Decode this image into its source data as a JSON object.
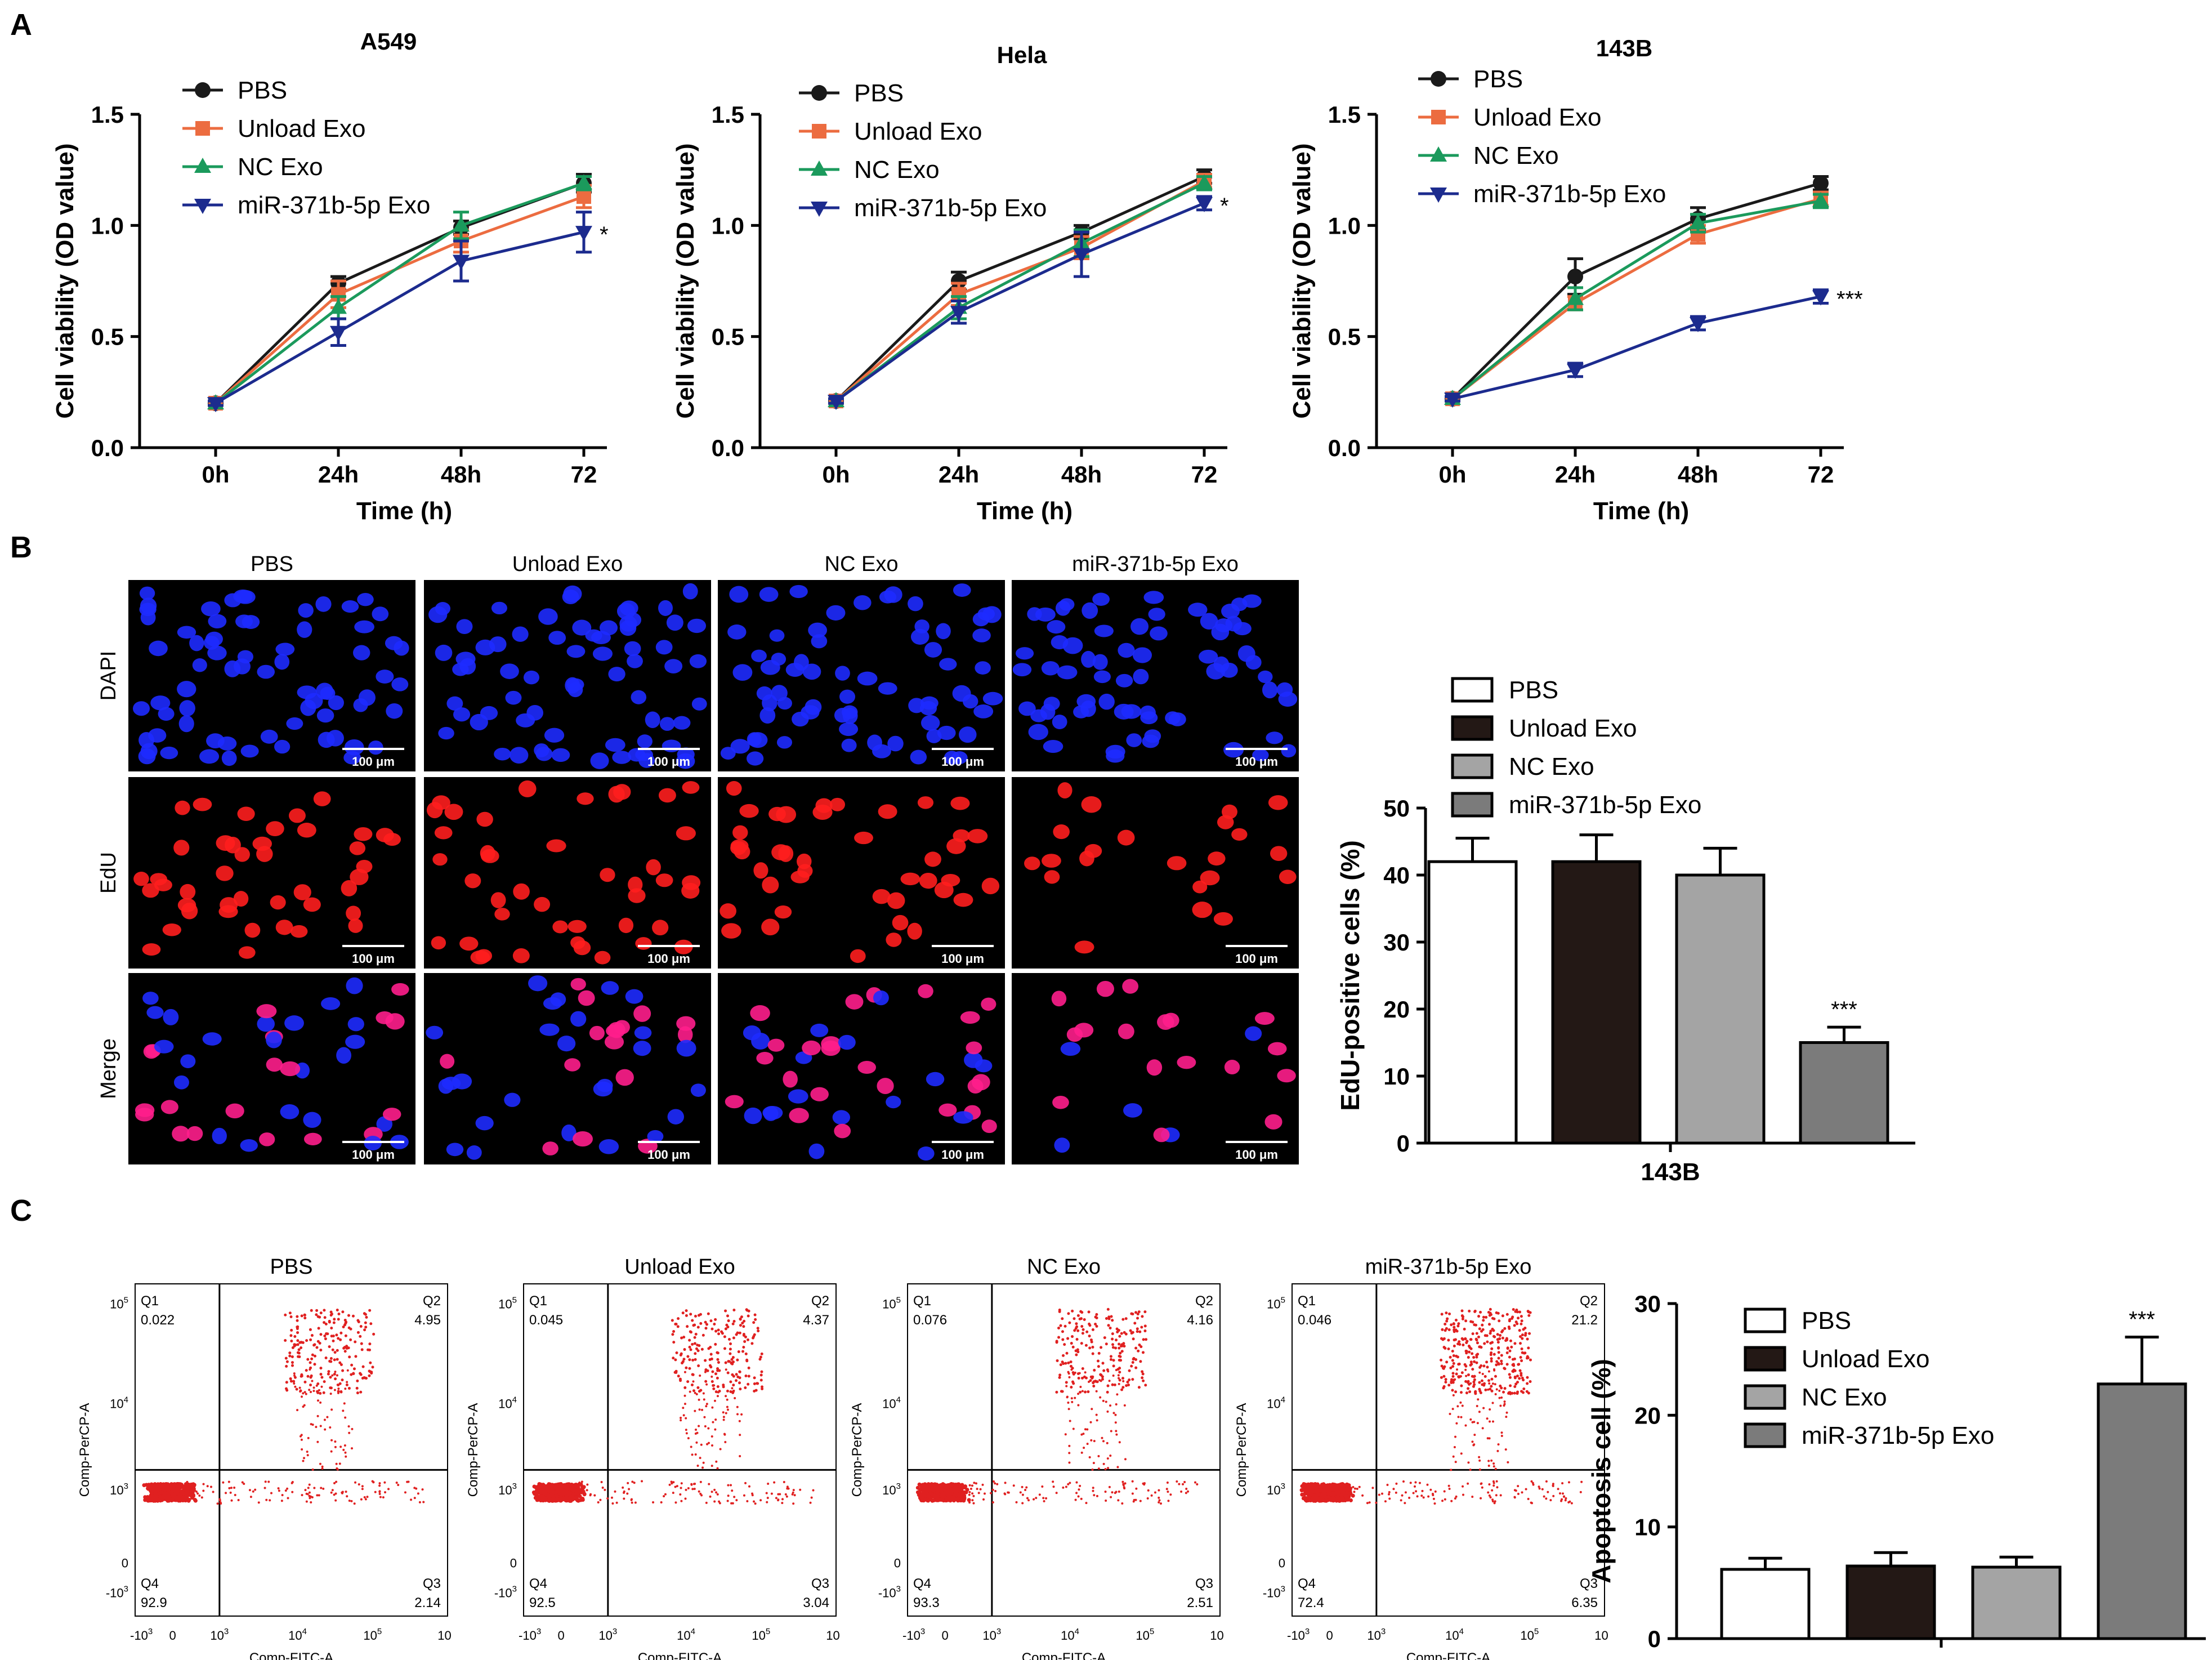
{
  "panels": {
    "a": "A",
    "b": "B",
    "c": "C"
  },
  "legend_labels": [
    "PBS",
    "Unload Exo",
    "NC Exo",
    "miR-371b-5p Exo"
  ],
  "colors": {
    "line_series": [
      "#1a1a1a",
      "#ec6c40",
      "#1b9a5c",
      "#1c2b8e"
    ],
    "bar_fills": [
      "#ffffff",
      "#231815",
      "#a4a4a4",
      "#7b7b7b"
    ],
    "dapi": "#1e2bff",
    "edu": "#ff1e1e",
    "merge": "#ff1e8c",
    "flow_dots": "#e02020"
  },
  "microscopy": {
    "columns": [
      "PBS",
      "Unload Exo",
      "NC Exo",
      "miR-371b-5p Exo"
    ],
    "rows": [
      "DAPI",
      "EdU",
      "Merge"
    ],
    "scale_bar": "100 μm"
  },
  "flow": {
    "plots": [
      {
        "title": "PBS",
        "q1": "0.022",
        "q2": "4.95",
        "q3": "2.14",
        "q4": "92.9"
      },
      {
        "title": "Unload Exo",
        "q1": "0.045",
        "q2": "4.37",
        "q3": "3.04",
        "q4": "92.5"
      },
      {
        "title": "NC Exo",
        "q1": "0.076",
        "q2": "4.16",
        "q3": "2.51",
        "q4": "93.3"
      },
      {
        "title": "miR-371b-5p Exo",
        "q1": "0.046",
        "q2": "21.2",
        "q3": "6.35",
        "q4": "72.4"
      }
    ],
    "quadrant_names": [
      "Q1",
      "Q2",
      "Q3",
      "Q4"
    ],
    "xlabel": "Comp-FITC-A",
    "ylabel": "Comp-PerCP-A",
    "xticks": [
      "-10",
      "0",
      "10",
      "10",
      "10",
      "10"
    ],
    "xtick_exps": [
      "3",
      "",
      "3",
      "4",
      "5",
      ""
    ],
    "yticks": [
      "-10",
      "0",
      "10",
      "10",
      "10"
    ],
    "ytick_exps": [
      "3",
      "",
      "3",
      "4",
      "5"
    ]
  },
  "chart_data": [
    {
      "type": "line",
      "panel": "A",
      "title": "A549",
      "x": [
        "0h",
        "24h",
        "48h",
        "72"
      ],
      "xlabel": "Time (h)",
      "ylabel": "Cell viability (OD value)",
      "ylim": [
        0,
        1.5
      ],
      "yticks": [
        "0.0",
        "0.5",
        "1.0",
        "1.5"
      ],
      "series": [
        {
          "name": "PBS",
          "values": [
            0.2,
            0.74,
            0.99,
            1.19
          ],
          "errors": [
            0.01,
            0.03,
            0.03,
            0.04
          ]
        },
        {
          "name": "Unload Exo",
          "values": [
            0.2,
            0.69,
            0.93,
            1.13
          ],
          "errors": [
            0.01,
            0.06,
            0.05,
            0.05
          ]
        },
        {
          "name": "NC Exo",
          "values": [
            0.2,
            0.63,
            1.0,
            1.19
          ],
          "errors": [
            0.01,
            0.05,
            0.06,
            0.03
          ]
        },
        {
          "name": "miR-371b-5p Exo",
          "values": [
            0.2,
            0.52,
            0.84,
            0.97
          ],
          "errors": [
            0.01,
            0.06,
            0.09,
            0.09
          ]
        }
      ],
      "annotation": "*"
    },
    {
      "type": "line",
      "panel": "A",
      "title": "Hela",
      "x": [
        "0h",
        "24h",
        "48h",
        "72"
      ],
      "xlabel": "Time (h)",
      "ylabel": "Cell viability (OD value)",
      "ylim": [
        0,
        1.5
      ],
      "yticks": [
        "0.0",
        "0.5",
        "1.0",
        "1.5"
      ],
      "series": [
        {
          "name": "PBS",
          "values": [
            0.21,
            0.75,
            0.97,
            1.22
          ],
          "errors": [
            0.01,
            0.04,
            0.03,
            0.03
          ]
        },
        {
          "name": "Unload Exo",
          "values": [
            0.21,
            0.69,
            0.9,
            1.2
          ],
          "errors": [
            0.01,
            0.05,
            0.05,
            0.03
          ]
        },
        {
          "name": "NC Exo",
          "values": [
            0.21,
            0.63,
            0.92,
            1.19
          ],
          "errors": [
            0.01,
            0.05,
            0.06,
            0.03
          ]
        },
        {
          "name": "miR-371b-5p Exo",
          "values": [
            0.21,
            0.61,
            0.87,
            1.1
          ],
          "errors": [
            0.01,
            0.05,
            0.1,
            0.03
          ]
        }
      ],
      "annotation": "*"
    },
    {
      "type": "line",
      "panel": "A",
      "title": "143B",
      "x": [
        "0h",
        "24h",
        "48h",
        "72"
      ],
      "xlabel": "Time (h)",
      "ylabel": "Cell viability (OD value)",
      "ylim": [
        0,
        1.5
      ],
      "yticks": [
        "0.0",
        "0.5",
        "1.0",
        "1.5"
      ],
      "series": [
        {
          "name": "PBS",
          "values": [
            0.22,
            0.77,
            1.03,
            1.19
          ],
          "errors": [
            0.01,
            0.08,
            0.05,
            0.03
          ]
        },
        {
          "name": "Unload Exo",
          "values": [
            0.22,
            0.65,
            0.96,
            1.12
          ],
          "errors": [
            0.01,
            0.03,
            0.04,
            0.03
          ]
        },
        {
          "name": "NC Exo",
          "values": [
            0.22,
            0.67,
            1.01,
            1.11
          ],
          "errors": [
            0.01,
            0.05,
            0.04,
            0.03
          ]
        },
        {
          "name": "miR-371b-5p Exo",
          "values": [
            0.22,
            0.35,
            0.56,
            0.68
          ],
          "errors": [
            0.01,
            0.03,
            0.03,
            0.03
          ]
        }
      ],
      "annotation": "***"
    },
    {
      "type": "bar",
      "panel": "B",
      "categories": [
        "PBS",
        "Unload Exo",
        "NC Exo",
        "miR-371b-5p Exo"
      ],
      "values": [
        42,
        42,
        40,
        15
      ],
      "errors": [
        3.5,
        4,
        4,
        2.3
      ],
      "xlabel": "143B",
      "ylabel": "EdU-positive cells (%)",
      "ylim": [
        0,
        50
      ],
      "yticks": [
        "0",
        "10",
        "20",
        "30",
        "40",
        "50"
      ],
      "annotation": "***"
    },
    {
      "type": "bar",
      "panel": "C",
      "categories": [
        "PBS",
        "Unload Exo",
        "NC Exo",
        "miR-371b-5p Exo"
      ],
      "values": [
        6.2,
        6.5,
        6.4,
        22.8
      ],
      "errors": [
        1.0,
        1.2,
        0.9,
        4.2
      ],
      "xlabel": "",
      "ylabel": "Apoptosis cell (%)",
      "ylim": [
        0,
        30
      ],
      "yticks": [
        "0",
        "10",
        "20",
        "30"
      ],
      "annotation": "***"
    }
  ]
}
